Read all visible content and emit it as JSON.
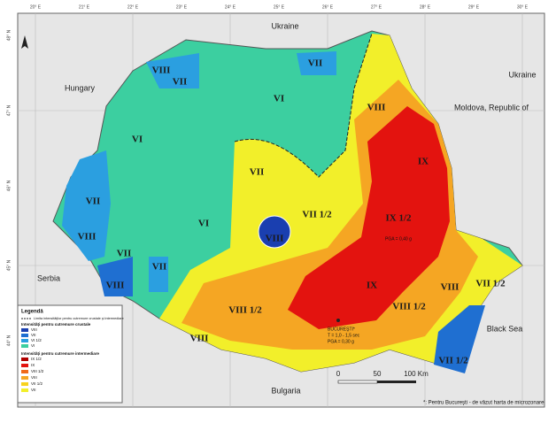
{
  "grid": {
    "lon": [
      "20° E",
      "21° E",
      "22° E",
      "23° E",
      "24° E",
      "25° E",
      "26° E",
      "27° E",
      "28° E",
      "29° E",
      "30° E"
    ],
    "lat": [
      "48° N",
      "47° N",
      "46° N",
      "45° N",
      "44° N"
    ]
  },
  "countries": [
    "Ukraine",
    "Ukraine",
    "Hungary",
    "Moldova, Republic of",
    "Serbia",
    "Bulgaria",
    "Black Sea"
  ],
  "zones": [
    "VIII",
    "VII",
    "VI",
    "VII",
    "VIII",
    "VI",
    "VII",
    "VI",
    "VII",
    "VIII",
    "VII",
    "VIII",
    "VII",
    "VIII",
    "VII 1/2",
    "IX 1/2",
    "IX",
    "IX",
    "VIII 1/2",
    "VIII 1/2",
    "VIII",
    "VIII",
    "VII 1/2",
    "VII 1/2"
  ],
  "annotations": {
    "city": "BUCUREŞTI*",
    "period": "T = 1,0 - 1,5 sec",
    "pga_bucharest": "PGA = 0,30 g",
    "pga_vrancea": "PGA = 0,40 g"
  },
  "legend": {
    "title": "Legendă",
    "boundary": "Limita intensităţilor pentru cutremure crustale şi intermediare",
    "crustal_title": "Intensităţi pentru cutremure crustale",
    "crustal": [
      "VIII",
      "VII",
      "VI 1/2",
      "VI"
    ],
    "intermediate_title": "Intensităţi pentru cutremure intermediare",
    "intermediate": [
      "IX 1/2",
      "IX",
      "VIII 1/2",
      "VIII",
      "VII 1/2",
      "VII"
    ]
  },
  "scale": [
    "0",
    "50",
    "100 Km"
  ],
  "note": "*: Pentru Bucureşti - de văzut harta de microzonare"
}
